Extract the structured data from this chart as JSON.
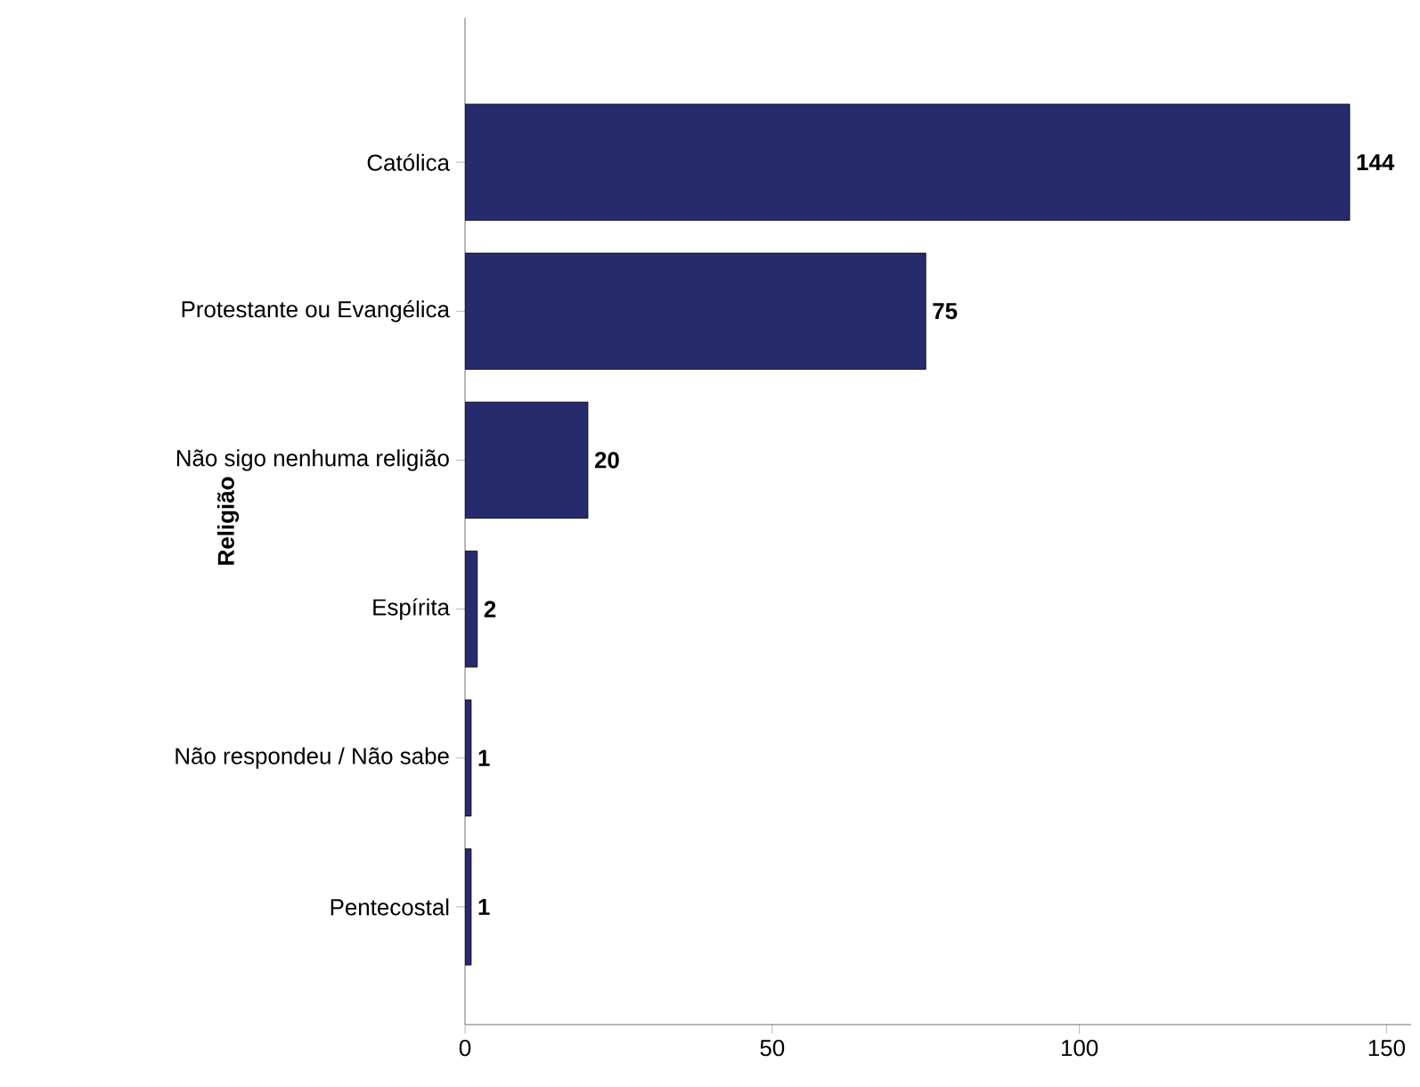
{
  "chart_data": {
    "type": "bar",
    "orientation": "horizontal",
    "ylabel": "Religião",
    "categories": [
      "Católica",
      "Protestante ou Evangélica",
      "Não sigo nenhuma religião",
      "Espírita",
      "Não respondeu / Não sabe",
      "Pentecostal"
    ],
    "values": [
      144,
      75,
      20,
      2,
      1,
      1
    ],
    "color": "#272a6d",
    "data_labels": true,
    "xlim": [
      0,
      154
    ],
    "xticks": [
      0,
      50,
      100,
      150
    ]
  }
}
